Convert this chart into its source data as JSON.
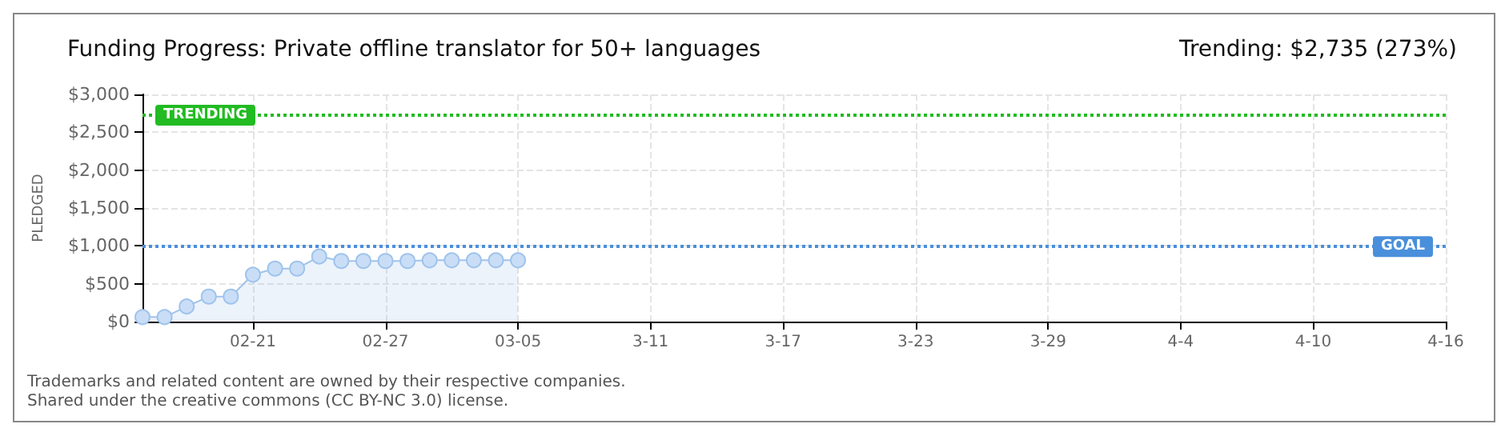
{
  "chart_data": {
    "type": "area",
    "title": "Funding Progress: Private offline translator for 50+ languages",
    "subtitle": "Trending: $2,735 (273%)",
    "ylabel": "PLEDGED",
    "x": [
      "--02-16",
      "--02-17",
      "--02-18",
      "--02-19",
      "--02-20",
      "--02-21",
      "--02-22",
      "--02-23",
      "--02-24",
      "--02-25",
      "--02-26",
      "--02-27",
      "--02-28",
      "--03-01",
      "--03-02",
      "--03-03",
      "--03-04",
      "--03-05"
    ],
    "series": [
      {
        "color": "#9fc3ec",
        "values": [
          60,
          60,
          200,
          330,
          330,
          620,
          700,
          700,
          860,
          800,
          800,
          800,
          800,
          810,
          810,
          810,
          810,
          810
        ]
      }
    ],
    "xlim": [
      "--02-16",
      "--04-16"
    ],
    "xticks": [
      {
        "value": "--02-21",
        "label": "02-21"
      },
      {
        "value": "--02-27",
        "label": "02-27"
      },
      {
        "value": "--03-05",
        "label": "03-05"
      },
      {
        "value": "--03-11",
        "label": "3-11"
      },
      {
        "value": "--03-17",
        "label": "3-17"
      },
      {
        "value": "--03-23",
        "label": "3-23"
      },
      {
        "value": "--03-29",
        "label": "3-29"
      },
      {
        "value": "--04-04",
        "label": "4-4"
      },
      {
        "value": "--04-10",
        "label": "4-10"
      },
      {
        "value": "--04-16",
        "label": "4-16"
      }
    ],
    "ylim": [
      0,
      3000
    ],
    "yticks": [
      {
        "value": 0,
        "label": "$0"
      },
      {
        "value": 500,
        "label": "$500"
      },
      {
        "value": 1000,
        "label": "$1,000"
      },
      {
        "value": 1500,
        "label": "$1,500"
      },
      {
        "value": 2000,
        "label": "$2,000"
      },
      {
        "value": 2500,
        "label": "$2,500"
      },
      {
        "value": 3000,
        "label": "$3,000"
      }
    ],
    "ref_lines": [
      {
        "axis": "y",
        "value": 2735,
        "label": "TRENDING",
        "color": "#22bb22",
        "line_style": "dotted"
      },
      {
        "axis": "y",
        "value": 1000,
        "label": "GOAL",
        "color": "#4a8fdb",
        "line_style": "dotted"
      }
    ],
    "annotations": [
      "Trademarks and related content are owned by their respective companies.",
      "Shared under the creative commons (CC BY-NC 3.0) license."
    ],
    "grid": true,
    "marker": "circle"
  }
}
